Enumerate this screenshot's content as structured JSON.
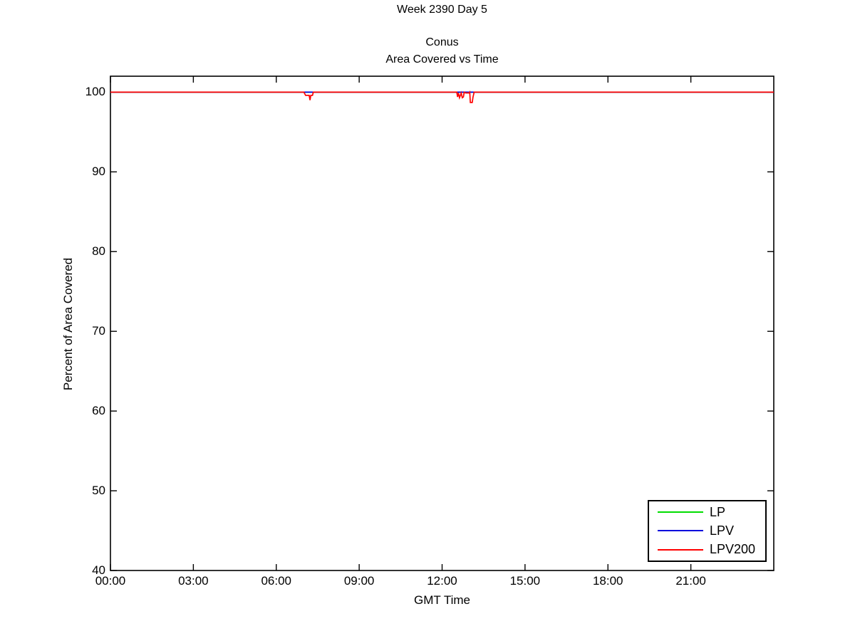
{
  "titles": {
    "week": "Week 2390 Day 5",
    "region": "Conus",
    "subtitle": "Area Covered vs Time"
  },
  "axes": {
    "x_label": "GMT Time",
    "y_label": "Percent of Area Covered"
  },
  "legend": {
    "entries": [
      {
        "label": "LP",
        "color": "#00dd00"
      },
      {
        "label": "LPV",
        "color": "#0000dd"
      },
      {
        "label": "LPV200",
        "color": "#ff0000"
      }
    ]
  },
  "chart_data": {
    "type": "line",
    "title": "Week 2390 Day 5 — Conus — Area Covered vs Time",
    "xlabel": "GMT Time",
    "ylabel": "Percent of Area Covered",
    "x_unit": "hours GMT",
    "xlim_hours": [
      0,
      24
    ],
    "ylim": [
      40,
      102
    ],
    "grid": false,
    "legend_position": "lower right",
    "x_ticks": [
      {
        "h": 0,
        "label": "00:00"
      },
      {
        "h": 3,
        "label": "03:00"
      },
      {
        "h": 6,
        "label": "06:00"
      },
      {
        "h": 9,
        "label": "09:00"
      },
      {
        "h": 12,
        "label": "12:00"
      },
      {
        "h": 15,
        "label": "15:00"
      },
      {
        "h": 18,
        "label": "18:00"
      },
      {
        "h": 21,
        "label": "21:00"
      }
    ],
    "y_ticks": [
      {
        "v": 100,
        "label": "100"
      },
      {
        "v": 90,
        "label": "90"
      },
      {
        "v": 80,
        "label": "80"
      },
      {
        "v": 70,
        "label": "70"
      },
      {
        "v": 60,
        "label": "60"
      },
      {
        "v": 50,
        "label": "50"
      },
      {
        "v": 40,
        "label": "40"
      }
    ],
    "series": [
      {
        "name": "LP",
        "color": "#00dd00",
        "points": [
          [
            0,
            100
          ],
          [
            24,
            100
          ]
        ]
      },
      {
        "name": "LPV",
        "color": "#0000dd",
        "points": [
          [
            0,
            100
          ],
          [
            24,
            100
          ]
        ]
      },
      {
        "name": "LPV200",
        "color": "#ff0000",
        "points": [
          [
            0,
            100
          ],
          [
            7.0,
            100
          ],
          [
            7.06,
            99.6
          ],
          [
            7.19,
            99.6
          ],
          [
            7.22,
            99.0
          ],
          [
            7.25,
            99.6
          ],
          [
            7.31,
            99.6
          ],
          [
            7.34,
            100
          ],
          [
            12.53,
            100
          ],
          [
            12.56,
            99.4
          ],
          [
            12.59,
            99.9
          ],
          [
            12.63,
            99.3
          ],
          [
            12.66,
            99.6
          ],
          [
            12.69,
            99.9
          ],
          [
            12.73,
            99.3
          ],
          [
            12.77,
            99.4
          ],
          [
            12.8,
            100
          ],
          [
            12.85,
            99.9
          ],
          [
            12.98,
            99.9
          ],
          [
            13.0,
            100
          ],
          [
            13.02,
            98.7
          ],
          [
            13.09,
            98.7
          ],
          [
            13.12,
            99.4
          ],
          [
            13.16,
            100
          ],
          [
            24,
            100
          ]
        ]
      }
    ]
  }
}
